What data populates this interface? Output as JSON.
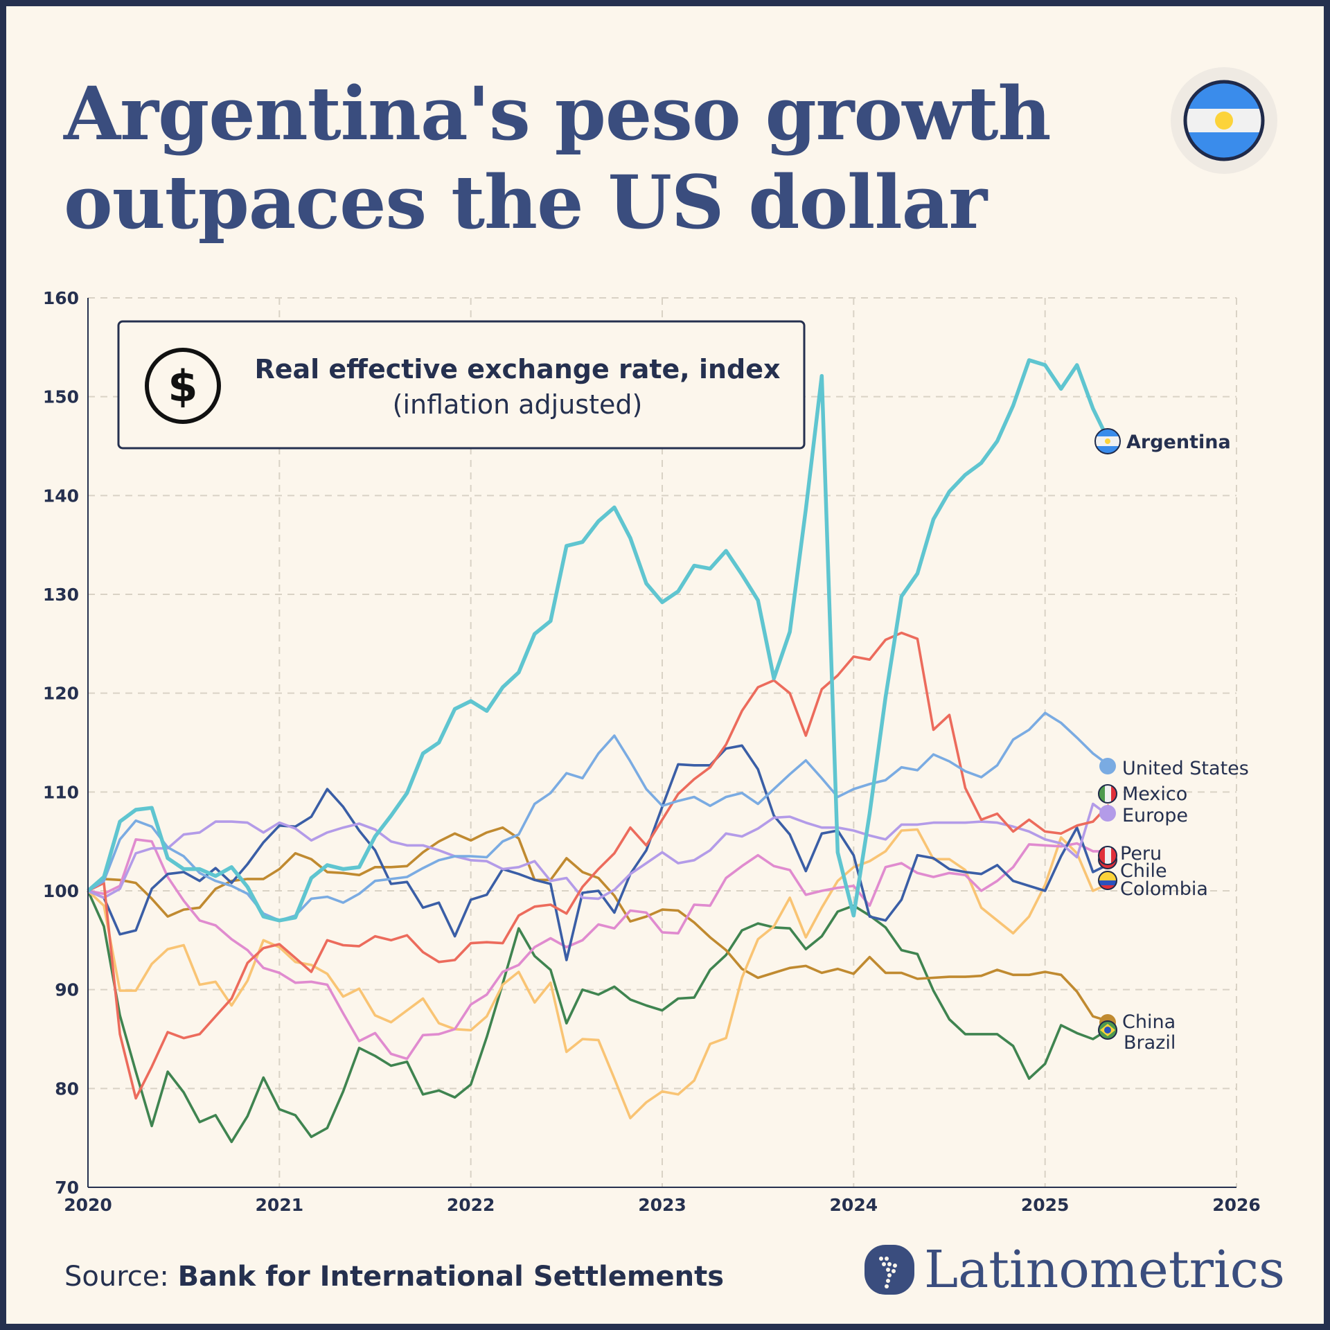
{
  "header": {
    "title_line1": "Argentina's peso growth",
    "title_line2": "outpaces the US dollar",
    "flag_icon": "argentina-flag"
  },
  "legend_box": {
    "icon": "dollar-icon",
    "line1": "Real effective exchange rate, index",
    "line2": "(inflation adjusted)"
  },
  "footer": {
    "source_prefix": "Source: ",
    "source": "Bank for International Settlements",
    "brand": "Latinometrics"
  },
  "chart_data": {
    "type": "line",
    "title": "Real effective exchange rate, index (inflation adjusted)",
    "xlim": [
      2020,
      2026
    ],
    "ylim": [
      70,
      160
    ],
    "x_ticks": [
      "2020",
      "2021",
      "2022",
      "2023",
      "2024",
      "2025",
      "2026"
    ],
    "y_ticks": [
      "70",
      "80",
      "90",
      "100",
      "110",
      "120",
      "130",
      "140",
      "150",
      "160"
    ],
    "grid": true,
    "x_start": "2020-01",
    "frequency": "monthly",
    "series": [
      {
        "name": "Brazil",
        "color": "#3f8450",
        "values": [
          100,
          96.4,
          87.4,
          81.7,
          76.2,
          81.7,
          79.6,
          76.6,
          77.3,
          74.6,
          77.2,
          81.1,
          77.9,
          77.3,
          75.1,
          76,
          79.7,
          84.1,
          83.3,
          82.3,
          82.7,
          79.4,
          79.8,
          79.1,
          80.4,
          85.2,
          90.6,
          96.2,
          93.4,
          92,
          86.6,
          90,
          89.5,
          90.3,
          89,
          88.4,
          87.9,
          89.1,
          89.2,
          92,
          93.5,
          96,
          96.7,
          96.3,
          96.2,
          94.1,
          95.4,
          97.9,
          98.5,
          97.5,
          96.3,
          94,
          93.6,
          89.9,
          87,
          85.5,
          85.5,
          85.5,
          84.3,
          81,
          82.5,
          86.4,
          85.6,
          85,
          86
        ]
      },
      {
        "name": "China",
        "color": "#c08a30",
        "values": [
          100,
          101.2,
          101.1,
          100.8,
          99.2,
          97.4,
          98.1,
          98.3,
          100.2,
          101,
          101.2,
          101.2,
          102.2,
          103.8,
          103.2,
          101.9,
          101.8,
          101.6,
          102.4,
          102.4,
          102.5,
          103.9,
          105,
          105.8,
          105.1,
          105.9,
          106.4,
          105.3,
          101.1,
          101.1,
          103.3,
          101.9,
          101.3,
          99.5,
          96.9,
          97.4,
          98.1,
          98,
          96.8,
          95.3,
          94,
          92.1,
          91.2,
          91.7,
          92.2,
          92.4,
          91.7,
          92.1,
          91.6,
          93.3,
          91.7,
          91.7,
          91.1,
          91.2,
          91.3,
          91.3,
          91.4,
          92,
          91.5,
          91.5,
          91.8,
          91.5,
          89.8,
          87.3,
          86.8
        ]
      },
      {
        "name": "Colombia",
        "color": "#f9c474",
        "values": [
          100,
          98.5,
          89.9,
          89.9,
          92.6,
          94.1,
          94.5,
          90.5,
          90.8,
          88.4,
          90.9,
          95,
          94.3,
          92.8,
          92.5,
          91.6,
          89.3,
          90.1,
          87.4,
          86.7,
          87.9,
          89.1,
          86.6,
          86,
          85.9,
          87.3,
          90.5,
          91.8,
          88.7,
          90.7,
          83.7,
          85,
          84.9,
          81,
          77,
          78.6,
          79.7,
          79.4,
          80.8,
          84.5,
          85.1,
          91.2,
          95.1,
          96.4,
          99.3,
          95.3,
          98.3,
          101,
          102.4,
          103,
          104,
          106.1,
          106.2,
          103.2,
          103.2,
          102.1,
          98.3,
          97,
          95.7,
          97.4,
          100.6,
          105.4,
          103.8,
          100,
          100.7
        ]
      },
      {
        "name": "Peru",
        "color": "#e08bcf",
        "values": [
          100,
          99.7,
          100.5,
          105.2,
          105,
          101.4,
          99,
          97,
          96.5,
          95.1,
          94,
          92.2,
          91.7,
          90.7,
          90.8,
          90.5,
          87.6,
          84.8,
          85.6,
          83.5,
          83,
          85.4,
          85.5,
          86,
          88.5,
          89.5,
          91.8,
          92.5,
          94.3,
          95.2,
          94.3,
          95,
          96.6,
          96.2,
          98,
          97.8,
          95.8,
          95.7,
          98.6,
          98.5,
          101.3,
          102.5,
          103.6,
          102.5,
          102.1,
          99.6,
          100,
          100.3,
          100.5,
          98.5,
          102.4,
          102.8,
          101.8,
          101.4,
          101.8,
          101.6,
          100,
          101,
          102.4,
          104.7,
          104.6,
          104.5,
          104.8,
          104,
          104
        ]
      },
      {
        "name": "Chile",
        "color": "#3a5ea6",
        "values": [
          100,
          99.3,
          95.6,
          96,
          100.2,
          101.7,
          101.9,
          101,
          102.3,
          100.8,
          102.7,
          104.9,
          106.6,
          106.5,
          107.5,
          110.3,
          108.5,
          106.1,
          104.1,
          100.7,
          100.9,
          98.3,
          98.8,
          95.4,
          99.1,
          99.6,
          102.2,
          101.7,
          101.1,
          100.7,
          93,
          99.8,
          100,
          97.8,
          101.7,
          104.1,
          108.5,
          112.8,
          112.7,
          112.7,
          114.4,
          114.7,
          112.3,
          107.6,
          105.7,
          102,
          105.8,
          106.1,
          103.6,
          97.4,
          97,
          99.1,
          103.6,
          103.3,
          102.2,
          101.9,
          101.7,
          102.6,
          101,
          100.5,
          100,
          103.5,
          106.4,
          101.9,
          102.7
        ]
      },
      {
        "name": "Europe",
        "color": "#b39be8",
        "values": [
          100,
          99.3,
          100.2,
          103.8,
          104.3,
          104.3,
          105.7,
          105.9,
          107,
          107,
          106.9,
          105.9,
          106.9,
          106.3,
          105.1,
          105.9,
          106.4,
          106.8,
          106.2,
          105,
          104.6,
          104.6,
          104.1,
          103.5,
          103.1,
          103,
          102.2,
          102.4,
          103,
          101,
          101.3,
          99.3,
          99.2,
          100.1,
          101.7,
          102.8,
          103.9,
          102.8,
          103.1,
          104.1,
          105.8,
          105.5,
          106.3,
          107.4,
          107.5,
          106.9,
          106.4,
          106.4,
          106.1,
          105.6,
          105.2,
          106.7,
          106.7,
          106.9,
          106.9,
          106.9,
          107,
          106.9,
          106.5,
          106,
          105.2,
          104.8,
          103.4,
          108.8,
          107.6
        ]
      },
      {
        "name": "Mexico",
        "color": "#ec6b5c",
        "values": [
          100,
          100.8,
          85.5,
          79,
          82.2,
          85.7,
          85.1,
          85.5,
          87.3,
          89.1,
          92.7,
          94.2,
          94.6,
          93.2,
          91.8,
          95,
          94.5,
          94.4,
          95.4,
          95,
          95.5,
          93.8,
          92.8,
          93,
          94.7,
          94.8,
          94.7,
          97.5,
          98.4,
          98.6,
          97.7,
          100.4,
          102.2,
          103.8,
          106.4,
          104.6,
          107.2,
          109.8,
          111.3,
          112.5,
          114.8,
          118.2,
          120.6,
          121.3,
          120,
          115.7,
          120.4,
          121.8,
          123.7,
          123.4,
          125.4,
          126.1,
          125.5,
          116.3,
          117.8,
          110.4,
          107.2,
          107.8,
          106,
          107.2,
          106,
          105.8,
          106.6,
          107,
          108.7
        ]
      },
      {
        "name": "United States",
        "color": "#7aabe2",
        "values": [
          100,
          101,
          105.2,
          107.1,
          106.5,
          104.4,
          103.5,
          101.8,
          101,
          100.5,
          99.7,
          97.7,
          97,
          97.5,
          99.2,
          99.4,
          98.8,
          99.7,
          101,
          101.2,
          101.4,
          102.3,
          103.1,
          103.5,
          103.5,
          103.4,
          105,
          105.7,
          108.8,
          109.9,
          111.9,
          111.4,
          113.9,
          115.7,
          113.1,
          110.3,
          108.6,
          109.1,
          109.5,
          108.6,
          109.5,
          109.9,
          108.8,
          110.3,
          111.8,
          113.2,
          111.4,
          109.5,
          110.3,
          110.8,
          111.2,
          112.5,
          112.2,
          113.8,
          113.1,
          112.1,
          111.5,
          112.7,
          115.3,
          116.3,
          118,
          117,
          115.5,
          113.9,
          112.7
        ]
      },
      {
        "name": "Argentina",
        "color": "#5fc5d0",
        "values": [
          100,
          101.4,
          107,
          108.2,
          108.4,
          103.3,
          102.2,
          102.2,
          101.5,
          102.4,
          100.4,
          97.4,
          97,
          97.3,
          101.3,
          102.6,
          102.2,
          102.4,
          105.5,
          107.6,
          109.9,
          113.9,
          115,
          118.4,
          119.2,
          118.2,
          120.6,
          122.1,
          126,
          127.3,
          134.9,
          135.3,
          137.4,
          138.8,
          135.7,
          131.1,
          129.2,
          130.3,
          132.9,
          132.6,
          134.4,
          132,
          129.4,
          121.5,
          126.2,
          138.6,
          152.1,
          103.9,
          97.5,
          107.8,
          119.6,
          129.8,
          132.1,
          137.6,
          140.4,
          142.1,
          143.3,
          145.5,
          149.1,
          153.7,
          153.2,
          150.8,
          153.2,
          148.8,
          145.5
        ]
      }
    ],
    "end_labels": {
      "argentina": "Argentina",
      "united_states": "United States",
      "mexico": "Mexico",
      "europe": "Europe",
      "peru": "Peru",
      "chile": "Chile",
      "colombia": "Colombia",
      "china": "China",
      "brazil": "Brazil"
    }
  }
}
